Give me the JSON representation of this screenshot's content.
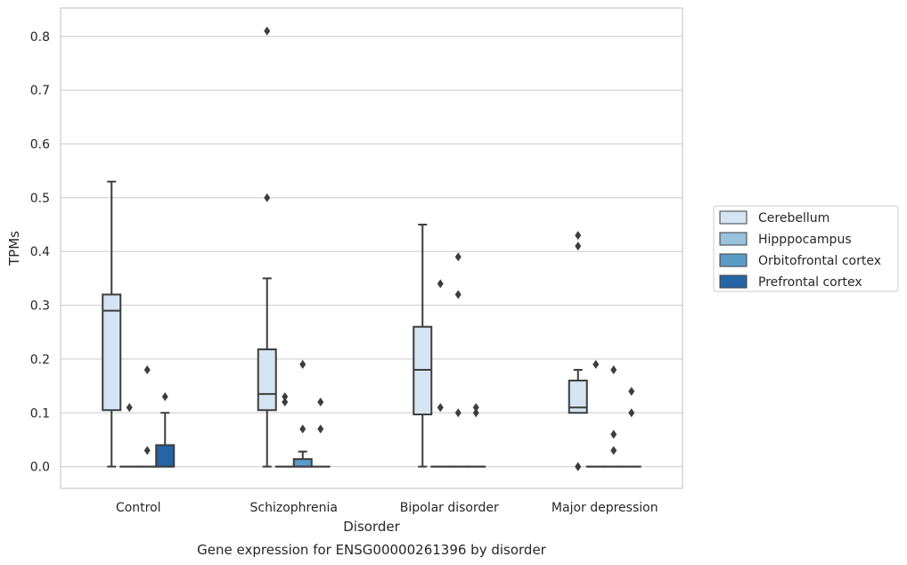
{
  "chart_data": {
    "type": "box",
    "caption": "Gene expression for ENSG00000261396 by disorder",
    "xlabel": "Disorder",
    "ylabel": "TPMs",
    "ylim": [
      -0.04,
      0.85
    ],
    "yticks": [
      0.0,
      0.1,
      0.2,
      0.3,
      0.4,
      0.5,
      0.6,
      0.7,
      0.8
    ],
    "grid": "horizontal",
    "legend_position": "right",
    "categories": [
      "Control",
      "Schizophrenia",
      "Bipolar disorder",
      "Major depression"
    ],
    "series": [
      {
        "name": "Cerebellum",
        "color": "#d5e4f2",
        "boxes": [
          {
            "q1": 0.105,
            "median": 0.29,
            "q3": 0.32,
            "whisker_low": 0.0,
            "whisker_high": 0.53,
            "outliers": []
          },
          {
            "q1": 0.105,
            "median": 0.135,
            "q3": 0.218,
            "whisker_low": 0.0,
            "whisker_high": 0.35,
            "outliers": [
              0.5,
              0.81
            ]
          },
          {
            "q1": 0.097,
            "median": 0.18,
            "q3": 0.26,
            "whisker_low": 0.0,
            "whisker_high": 0.45,
            "outliers": []
          },
          {
            "q1": 0.1,
            "median": 0.11,
            "q3": 0.16,
            "whisker_low": 0.1,
            "whisker_high": 0.18,
            "outliers": [
              0.0,
              0.0,
              0.41,
              0.43
            ]
          }
        ]
      },
      {
        "name": "Hipppocampus",
        "color": "#99c2dd",
        "boxes": [
          {
            "q1": 0.0,
            "median": 0.0,
            "q3": 0.0,
            "whisker_low": 0.0,
            "whisker_high": 0.0,
            "outliers": [
              0.11
            ]
          },
          {
            "q1": 0.0,
            "median": 0.0,
            "q3": 0.0,
            "whisker_low": 0.0,
            "whisker_high": 0.0,
            "outliers": [
              0.12,
              0.13
            ]
          },
          {
            "q1": 0.0,
            "median": 0.0,
            "q3": 0.0,
            "whisker_low": 0.0,
            "whisker_high": 0.0,
            "outliers": [
              0.11,
              0.34
            ]
          },
          {
            "q1": 0.0,
            "median": 0.0,
            "q3": 0.0,
            "whisker_low": 0.0,
            "whisker_high": 0.0,
            "outliers": [
              0.19
            ]
          }
        ]
      },
      {
        "name": "Orbitofrontal cortex",
        "color": "#5a9bc8",
        "boxes": [
          {
            "q1": 0.0,
            "median": 0.0,
            "q3": 0.0,
            "whisker_low": 0.0,
            "whisker_high": 0.0,
            "outliers": [
              0.03,
              0.18
            ]
          },
          {
            "q1": 0.0,
            "median": 0.0,
            "q3": 0.014,
            "whisker_low": 0.0,
            "whisker_high": 0.028,
            "outliers": [
              0.07,
              0.19
            ]
          },
          {
            "q1": 0.0,
            "median": 0.0,
            "q3": 0.0,
            "whisker_low": 0.0,
            "whisker_high": 0.0,
            "outliers": [
              0.1,
              0.32,
              0.39
            ]
          },
          {
            "q1": 0.0,
            "median": 0.0,
            "q3": 0.0,
            "whisker_low": 0.0,
            "whisker_high": 0.0,
            "outliers": [
              0.03,
              0.06,
              0.18
            ]
          }
        ]
      },
      {
        "name": "Prefrontal cortex",
        "color": "#2565a5",
        "boxes": [
          {
            "q1": 0.0,
            "median": 0.0,
            "q3": 0.04,
            "whisker_low": 0.0,
            "whisker_high": 0.1,
            "outliers": [
              0.13
            ]
          },
          {
            "q1": 0.0,
            "median": 0.0,
            "q3": 0.0,
            "whisker_low": 0.0,
            "whisker_high": 0.0,
            "outliers": [
              0.07,
              0.12
            ]
          },
          {
            "q1": 0.0,
            "median": 0.0,
            "q3": 0.0,
            "whisker_low": 0.0,
            "whisker_high": 0.0,
            "outliers": [
              0.1,
              0.11
            ]
          },
          {
            "q1": 0.0,
            "median": 0.0,
            "q3": 0.0,
            "whisker_low": 0.0,
            "whisker_high": 0.0,
            "outliers": [
              0.1,
              0.14
            ]
          }
        ]
      }
    ]
  }
}
